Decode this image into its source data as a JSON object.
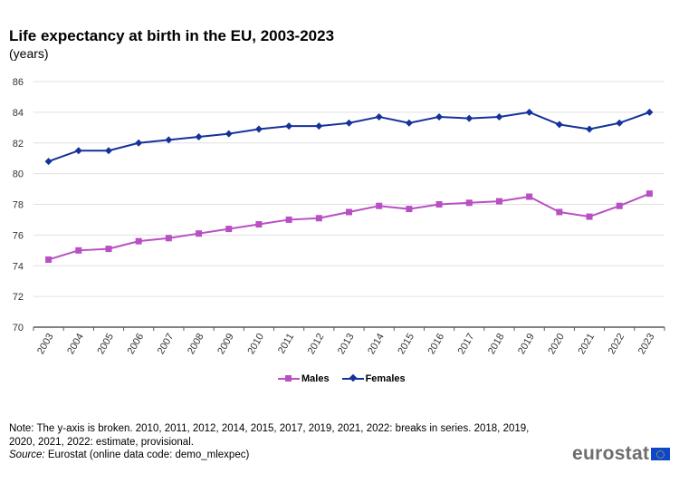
{
  "header": {
    "title": "Life expectancy at birth in the EU, 2003-2023",
    "subtitle": "(years)"
  },
  "legend": {
    "males": "Males",
    "females": "Females"
  },
  "footer": {
    "note": "Note: The y-axis is broken.  2010, 2011, 2012, 2014, 2015, 2017, 2019, 2021, 2022: breaks in series.  2018, 2019, 2020, 2021, 2022: estimate, provisional.",
    "source_label": "Source:",
    "source_text": " Eurostat (online data code: demo_mlexpec)",
    "logo_text": "eurostat",
    "logo_icon": "eu-flag-icon"
  },
  "colors": {
    "males": "#b94fc4",
    "females": "#15329a",
    "grid": "#e0e0e0",
    "axis": "#595959"
  },
  "chart_data": {
    "type": "line",
    "title": "Life expectancy at birth in the EU, 2003-2023",
    "subtitle": "(years)",
    "xlabel": "",
    "ylabel": "",
    "ylim": [
      70,
      86
    ],
    "yticks": [
      70,
      72,
      74,
      76,
      78,
      80,
      82,
      84,
      86
    ],
    "grid": true,
    "legend_position": "bottom-center",
    "categories": [
      "2003",
      "2004",
      "2005",
      "2006",
      "2007",
      "2008",
      "2009",
      "2010",
      "2011",
      "2012",
      "2013",
      "2014",
      "2015",
      "2016",
      "2017",
      "2018",
      "2019",
      "2020",
      "2021",
      "2022",
      "2023"
    ],
    "series": [
      {
        "name": "Males",
        "marker": "square",
        "values": [
          74.4,
          75.0,
          75.1,
          75.6,
          75.8,
          76.1,
          76.4,
          76.7,
          77.0,
          77.1,
          77.5,
          77.9,
          77.7,
          78.0,
          78.1,
          78.2,
          78.5,
          77.5,
          77.2,
          77.9,
          78.7
        ]
      },
      {
        "name": "Females",
        "marker": "diamond",
        "values": [
          80.8,
          81.5,
          81.5,
          82.0,
          82.2,
          82.4,
          82.6,
          82.9,
          83.1,
          83.1,
          83.3,
          83.7,
          83.3,
          83.7,
          83.6,
          83.7,
          84.0,
          83.2,
          82.9,
          83.3,
          84.0
        ]
      }
    ]
  }
}
